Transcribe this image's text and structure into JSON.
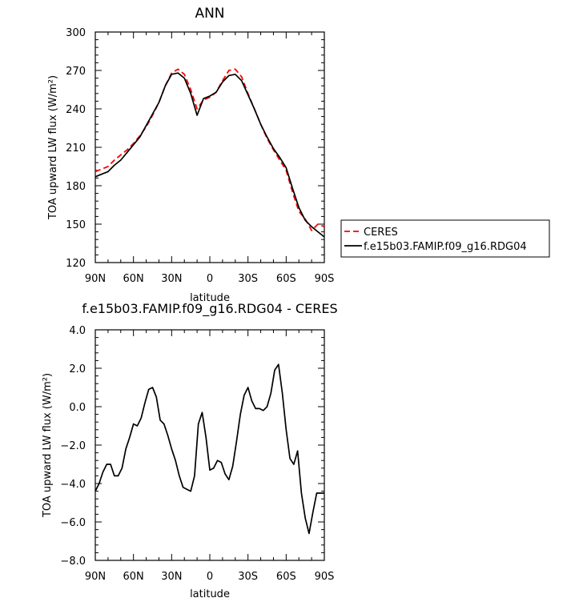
{
  "chart_data": [
    {
      "type": "line",
      "title": "ANN",
      "xlabel": "latitude",
      "ylabel": "TOA upward LW flux (W/m²)",
      "xlim": [
        -90,
        90
      ],
      "ylim": [
        120,
        300
      ],
      "x_ticks": [
        -90,
        -60,
        -30,
        0,
        30,
        60,
        90
      ],
      "x_tick_labels": [
        "90N",
        "60N",
        "30N",
        "0",
        "30S",
        "60S",
        "90S"
      ],
      "y_ticks": [
        120,
        150,
        180,
        210,
        240,
        270,
        300
      ],
      "y_tick_labels": [
        "120",
        "150",
        "180",
        "210",
        "240",
        "270",
        "300"
      ],
      "x": [
        -90,
        -85,
        -80,
        -75,
        -70,
        -65,
        -60,
        -55,
        -50,
        -45,
        -40,
        -35,
        -30,
        -25,
        -20,
        -15,
        -10,
        -5,
        0,
        5,
        10,
        15,
        20,
        25,
        30,
        35,
        40,
        45,
        50,
        55,
        60,
        65,
        70,
        75,
        80,
        85,
        90
      ],
      "series": [
        {
          "name": "CERES",
          "color": "#ff0000",
          "dash": "dashed",
          "values": [
            191,
            193,
            195,
            200,
            204,
            208,
            213,
            219,
            226,
            235,
            245,
            258,
            268,
            271,
            267,
            255,
            240,
            247,
            249,
            253,
            262,
            270,
            271,
            265,
            252,
            240,
            228,
            217,
            208,
            200,
            192,
            175,
            160,
            154,
            145,
            150,
            148
          ]
        },
        {
          "name": "f.e15b03.FAMIP.f09_g16.RDG04",
          "color": "#000000",
          "dash": "solid",
          "values": [
            187,
            189,
            191,
            196,
            200,
            206,
            212,
            218,
            227,
            236,
            245,
            258,
            267,
            268,
            264,
            252,
            235,
            248,
            250,
            253,
            261,
            266,
            267,
            262,
            251,
            240,
            228,
            218,
            209,
            202,
            194,
            178,
            163,
            153,
            148,
            144,
            140
          ]
        }
      ],
      "legend": [
        "CERES",
        "f.e15b03.FAMIP.f09_g16.RDG04"
      ],
      "legend_position": "right-middle"
    },
    {
      "type": "line",
      "title": "f.e15b03.FAMIP.f09_g16.RDG04 - CERES",
      "xlabel": "latitude",
      "ylabel": "TOA upward LW flux (W/m²)",
      "xlim": [
        -90,
        90
      ],
      "ylim": [
        -8.0,
        4.0
      ],
      "x_ticks": [
        -90,
        -60,
        -30,
        0,
        30,
        60,
        90
      ],
      "x_tick_labels": [
        "90N",
        "60N",
        "30N",
        "0",
        "30S",
        "60S",
        "90S"
      ],
      "y_ticks": [
        -8.0,
        -6.0,
        -4.0,
        -2.0,
        0.0,
        2.0,
        4.0
      ],
      "y_tick_labels": [
        "−8.0",
        "−6.0",
        "−4.0",
        "−2.0",
        "0.0",
        "2.0",
        "4.0"
      ],
      "x": [
        -90,
        -87,
        -84,
        -81,
        -78,
        -75,
        -72,
        -69,
        -66,
        -63,
        -60,
        -57,
        -54,
        -51,
        -48,
        -45,
        -42,
        -39,
        -36,
        -33,
        -30,
        -27,
        -24,
        -21,
        -18,
        -15,
        -12,
        -9,
        -6,
        -3,
        0,
        3,
        6,
        9,
        12,
        15,
        18,
        21,
        24,
        27,
        30,
        33,
        36,
        39,
        42,
        45,
        48,
        51,
        54,
        57,
        60,
        63,
        66,
        69,
        72,
        75,
        78,
        81,
        84,
        87,
        90
      ],
      "series": [
        {
          "name": "f.e15b03.FAMIP.f09_g16.RDG04 - CERES",
          "color": "#000000",
          "dash": "solid",
          "values": [
            -4.4,
            -4.0,
            -3.4,
            -3.0,
            -3.0,
            -3.6,
            -3.6,
            -3.2,
            -2.2,
            -1.6,
            -0.9,
            -1.0,
            -0.6,
            0.2,
            0.9,
            1.0,
            0.5,
            -0.7,
            -0.9,
            -1.5,
            -2.2,
            -2.8,
            -3.6,
            -4.2,
            -4.3,
            -4.4,
            -3.6,
            -0.9,
            -0.3,
            -1.6,
            -3.3,
            -3.2,
            -2.8,
            -2.9,
            -3.5,
            -3.8,
            -3.1,
            -1.8,
            -0.4,
            0.6,
            1.0,
            0.3,
            -0.1,
            -0.1,
            -0.2,
            0.0,
            0.7,
            1.9,
            2.2,
            0.7,
            -1.2,
            -2.7,
            -3.0,
            -2.3,
            -4.5,
            -5.8,
            -6.6,
            -5.5,
            -4.5,
            -4.5,
            -4.5
          ]
        }
      ]
    }
  ]
}
